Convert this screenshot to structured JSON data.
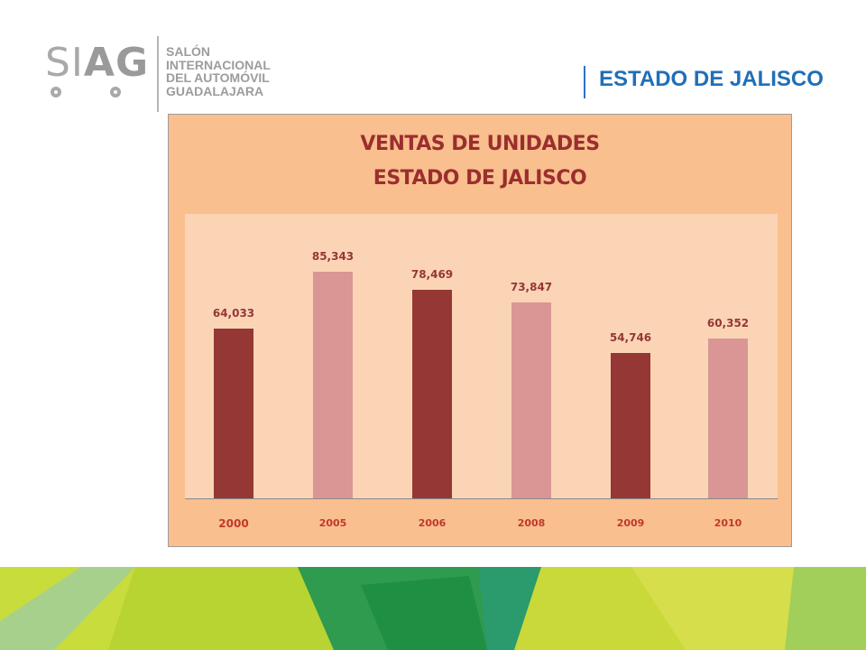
{
  "logo": {
    "mark_left": "SI",
    "mark_right": "AG",
    "lines": [
      "SALÓN",
      "INTERNACIONAL",
      "DEL AUTOMÓVIL",
      "GUADALAJARA"
    ]
  },
  "header": {
    "title": "ESTADO DE JALISCO",
    "title_color": "#1f6fb8"
  },
  "chart_data": {
    "type": "bar",
    "title": "VENTAS DE UNIDADES",
    "subtitle": "ESTADO DE JALISCO",
    "categories": [
      "2000",
      "2005",
      "2006",
      "2008",
      "2009",
      "2010"
    ],
    "values": [
      64033,
      85343,
      78469,
      73847,
      54746,
      60352
    ],
    "value_labels": [
      "64,033",
      "85,343",
      "78,469",
      "73,847",
      "54,746",
      "60,352"
    ],
    "bar_colors": [
      "#953735",
      "#d99694",
      "#953735",
      "#d99694",
      "#953735",
      "#d99694"
    ],
    "xlabel": "",
    "ylabel": "",
    "ylim": [
      0,
      90000
    ],
    "grid": false,
    "legend": "none"
  },
  "colors": {
    "frame_background": "#f9bf8f",
    "plot_background": "#fbd4b6",
    "title_color": "#9b2e2e"
  }
}
